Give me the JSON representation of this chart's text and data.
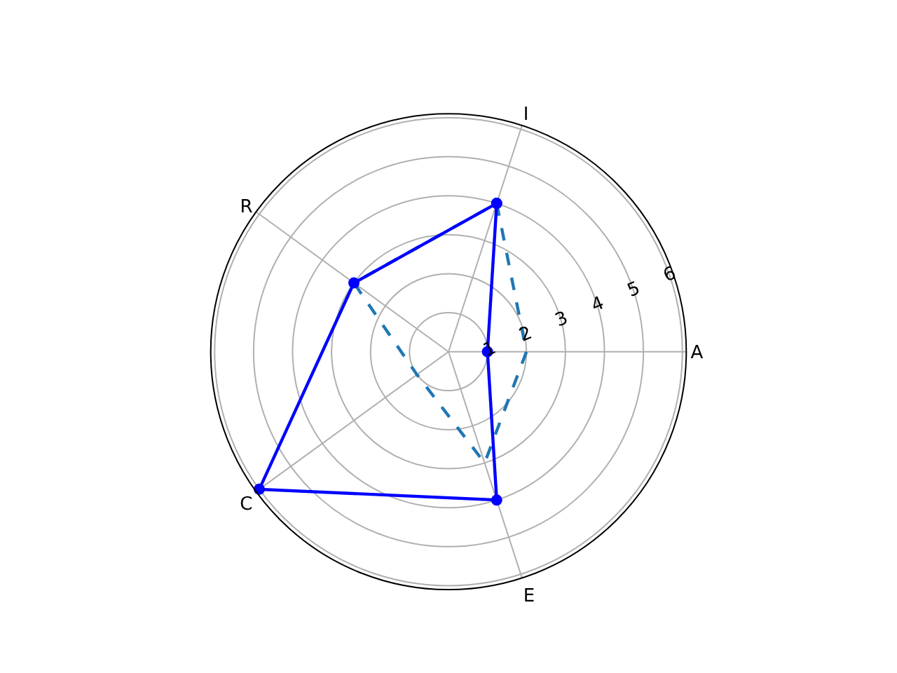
{
  "chart_data": {
    "type": "radar",
    "categories": [
      "I",
      "A",
      "E",
      "C",
      "R"
    ],
    "series": [
      {
        "color": "#1f77b4",
        "values": [
          4,
          2,
          3,
          1,
          3
        ],
        "line_style": "dashed",
        "marker": "none"
      },
      {
        "color": "#0000ff",
        "values": [
          4,
          1,
          4,
          6,
          3
        ],
        "line_style": "solid",
        "marker": "circle"
      }
    ],
    "ylim": [
      0,
      6.1
    ],
    "yticks": [
      1,
      2,
      3,
      4,
      5,
      6
    ],
    "grid": true
  }
}
